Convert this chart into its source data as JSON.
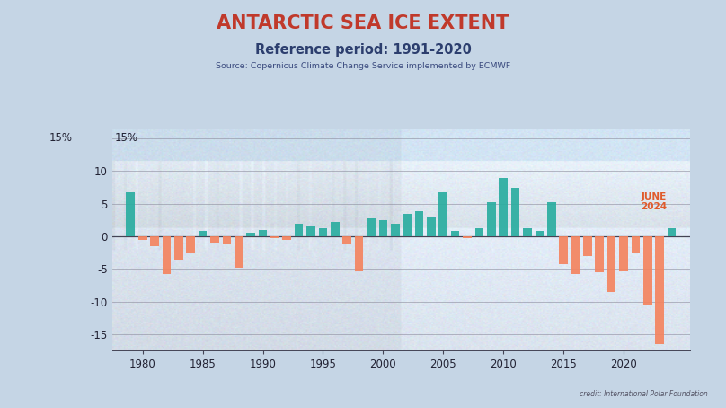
{
  "title": "ANTARCTIC SEA ICE EXTENT",
  "subtitle": "Reference period: 1991-2020",
  "source": "Source: Copernicus Climate Change Service implemented by ECMWF",
  "credit": "credit: International Polar Foundation",
  "years": [
    1979,
    1980,
    1981,
    1982,
    1983,
    1984,
    1985,
    1986,
    1987,
    1988,
    1989,
    1990,
    1991,
    1992,
    1993,
    1994,
    1995,
    1996,
    1997,
    1998,
    1999,
    2000,
    2001,
    2002,
    2003,
    2004,
    2005,
    2006,
    2007,
    2008,
    2009,
    2010,
    2011,
    2012,
    2013,
    2014,
    2015,
    2016,
    2017,
    2018,
    2019,
    2020,
    2021,
    2022,
    2023,
    2024
  ],
  "values": [
    6.8,
    -0.5,
    -1.5,
    -5.8,
    -3.5,
    -2.5,
    0.8,
    -1.0,
    -1.2,
    -4.8,
    0.5,
    1.0,
    -0.3,
    -0.5,
    2.0,
    1.5,
    1.2,
    2.2,
    -1.2,
    -5.2,
    2.8,
    2.5,
    2.0,
    3.5,
    3.8,
    3.0,
    6.8,
    0.8,
    -0.3,
    1.2,
    5.2,
    9.0,
    7.5,
    1.2,
    0.8,
    5.2,
    -4.2,
    -5.8,
    -3.0,
    -5.5,
    -8.5,
    -5.2,
    -2.5,
    -10.5,
    -16.5,
    1.2
  ],
  "positive_color": "#2aada0",
  "negative_color": "#f4845f",
  "bg_color_top": "#c5d5e5",
  "bg_color_chart_top": "#cdd8e6",
  "bg_color_chart_bottom": "#dde8f0",
  "title_color": "#c0392b",
  "subtitle_color": "#2c3e6e",
  "source_color": "#3a4a7e",
  "yticks": [
    -15,
    -10,
    -5,
    0,
    5,
    10
  ],
  "ylim": [
    -17.5,
    16.5
  ],
  "ytick_top_label": "15%",
  "grid_color": "#888899",
  "bar_width": 0.72,
  "annotation_text": "JUNE\n2024",
  "annotation_color": "#e05a2b",
  "credit_text": "credit: International Polar Foundation",
  "xlim_left": 1977.5,
  "xlim_right": 2025.5,
  "xtick_years": [
    1980,
    1985,
    1990,
    1995,
    2000,
    2005,
    2010,
    2015,
    2020
  ]
}
